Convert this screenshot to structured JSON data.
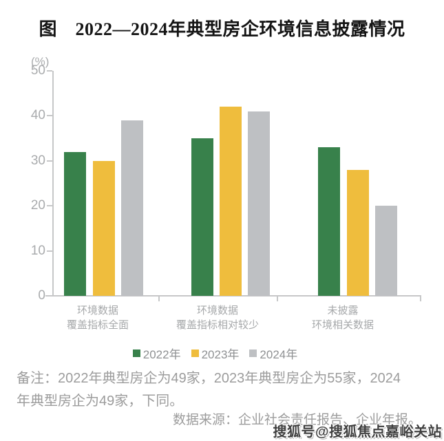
{
  "title": "图　2022—2024年典型房企环境信息披露情况",
  "chart_data": {
    "type": "bar",
    "title": "图　2022—2024年典型房企环境信息披露情况",
    "ylabel": "(%)",
    "ylim": [
      0,
      50
    ],
    "yticks": [
      0,
      10,
      20,
      30,
      40,
      50
    ],
    "grid": false,
    "legend_position": "bottom-center",
    "categories": [
      "环境数据\n覆盖指标全面",
      "环境数据\n覆盖指标相对较少",
      "未披露\n环境相关数据"
    ],
    "series": [
      {
        "name": "2022年",
        "color": "#38814B",
        "values": [
          32,
          35,
          33
        ]
      },
      {
        "name": "2023年",
        "color": "#EFBD3D",
        "values": [
          30,
          42,
          28
        ]
      },
      {
        "name": "2024年",
        "color": "#BEC0C3",
        "values": [
          39,
          41,
          20
        ]
      }
    ]
  },
  "colors": {
    "series_2022": "#38814B",
    "series_2023": "#EFBD3D",
    "series_2024": "#BEC0C3",
    "axis": "#C6C7C8",
    "tick_text": "#A9ABAD",
    "category_text": "#A6A8AA",
    "legend_text": "#8F9193",
    "note_text": "#9C9C9C",
    "title_text": "#141414",
    "watermark_text": "#3F3F3F"
  },
  "note": {
    "line1": "备注：2022年典型房企为49家，2023年典型房企为55家，2024",
    "line2": "年典型房企为49家，下同。"
  },
  "source": "数据来源：企业社会责任报告、企业年报。",
  "watermark": "搜狐号@搜狐焦点嘉峪关站"
}
